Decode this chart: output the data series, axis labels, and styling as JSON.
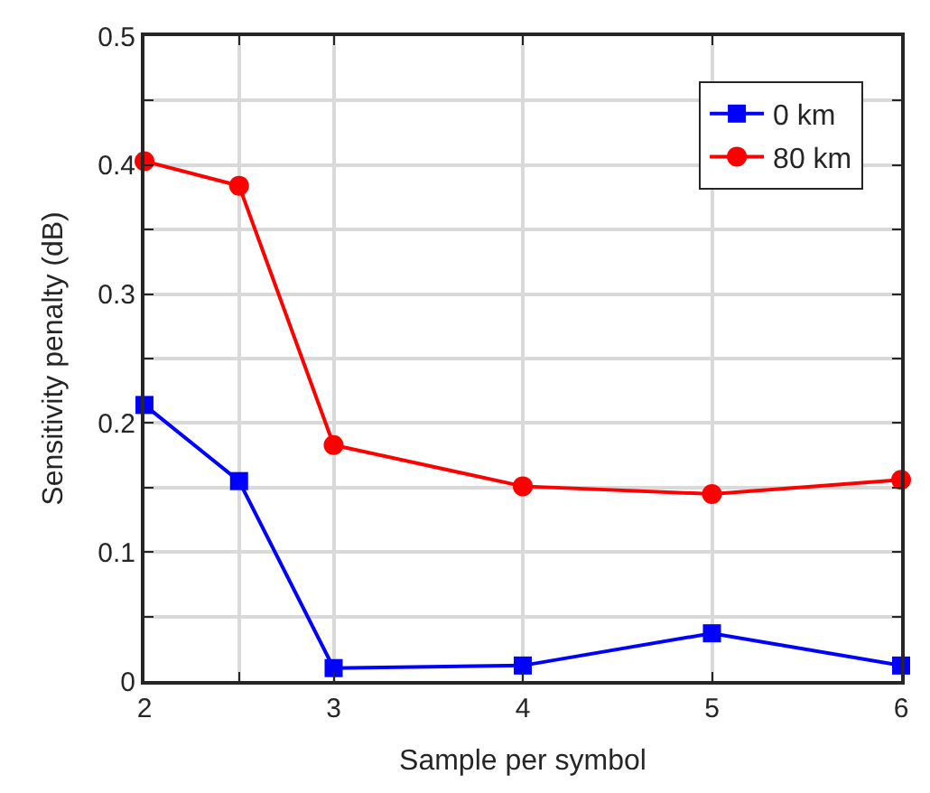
{
  "chart_data": {
    "type": "line",
    "xlabel": "Sample per symbol",
    "ylabel": "Sensitivity penalty (dB)",
    "x": [
      2,
      2.5,
      3,
      4,
      5,
      6
    ],
    "series": [
      {
        "name": "0 km",
        "color": "#0000ff",
        "marker": "square",
        "values": [
          0.214,
          0.155,
          0.01,
          0.012,
          0.037,
          0.012
        ]
      },
      {
        "name": "80 km",
        "color": "#ff0000",
        "marker": "circle",
        "values": [
          0.403,
          0.384,
          0.183,
          0.151,
          0.145,
          0.156
        ]
      }
    ],
    "xlim": [
      2,
      6
    ],
    "xticks": [
      2,
      {
        "value": 2.5,
        "label": null
      },
      3,
      4,
      5,
      6
    ],
    "ylim": [
      0,
      0.5
    ],
    "yticks": [
      0,
      {
        "value": 0.05,
        "label": null
      },
      0.1,
      {
        "value": 0.15,
        "label": null
      },
      0.2,
      {
        "value": 0.25,
        "label": null
      },
      0.3,
      {
        "value": 0.35,
        "label": null
      },
      0.4,
      {
        "value": 0.45,
        "label": null
      },
      0.5
    ],
    "grid": true,
    "legend": "top right",
    "line_style": "solid"
  }
}
